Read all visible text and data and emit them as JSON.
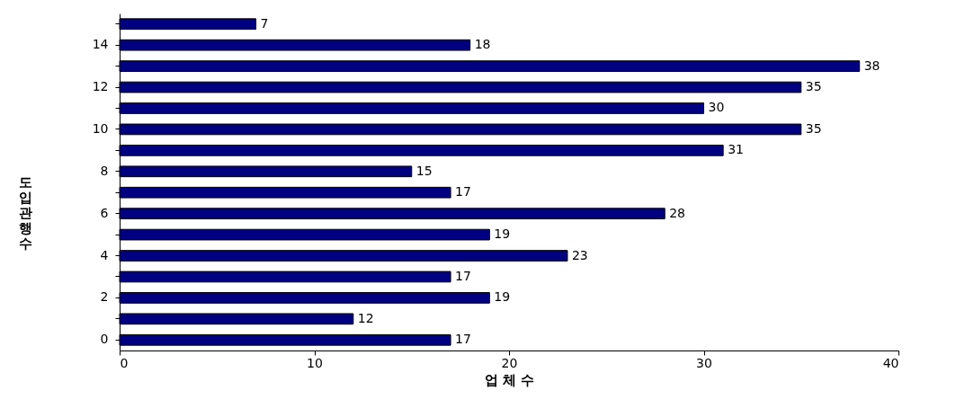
{
  "chart_data": {
    "type": "bar",
    "orientation": "horizontal",
    "categories": [
      null,
      "14",
      null,
      "12",
      null,
      "10",
      null,
      "8",
      null,
      "6",
      null,
      "4",
      null,
      "2",
      null,
      "0"
    ],
    "values": [
      7,
      18,
      38,
      35,
      30,
      35,
      31,
      15,
      17,
      28,
      19,
      23,
      17,
      19,
      12,
      17
    ],
    "color": "#000080",
    "xlim": [
      0,
      40
    ],
    "xticks": [
      0,
      10,
      20,
      30,
      40
    ],
    "xlabel": "업 체 수",
    "ylabel": "도입관행수",
    "data_labels": true,
    "grid": false
  }
}
